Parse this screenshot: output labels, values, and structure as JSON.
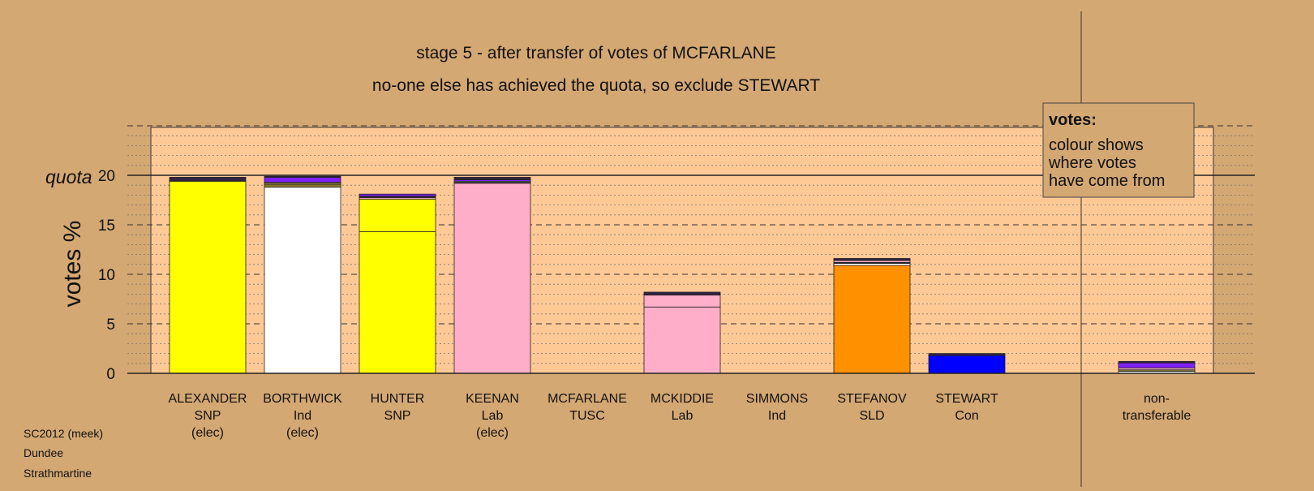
{
  "titles": {
    "line1": "stage 5 - after transfer of votes of MCFARLANE",
    "line2": "no-one else has achieved the quota, so exclude STEWART"
  },
  "footer": [
    "SC2012 (meek)",
    "Dundee",
    "Strathmartine"
  ],
  "legend": {
    "heading": "votes:",
    "lines": [
      "colour shows",
      "where votes",
      "have come from"
    ]
  },
  "colors": {
    "background": "#d4a873",
    "plot_fill": "#ffc996",
    "SNP": "#ffff00",
    "Ind": "#ffffff",
    "Lab": "#ffaec9",
    "SLD": "#ff9000",
    "Con": "#0000ff",
    "TUSC": "#8020ff",
    "dark": "#332244",
    "olive": "#8a7a30"
  },
  "chart_data": {
    "type": "bar",
    "ylabel": "votes %",
    "ylim": [
      0,
      25
    ],
    "yticks": [
      0,
      5,
      10,
      15,
      20
    ],
    "quota": 20,
    "quota_label": "quota",
    "grid": "dashed major, dotted minor",
    "candidates": [
      {
        "name": "ALEXANDER",
        "party": "SNP",
        "status": "(elec)",
        "total": 19.8,
        "segments": [
          {
            "from": "SNP",
            "value": 19.4
          },
          {
            "from": "dark",
            "value": 0.4
          }
        ]
      },
      {
        "name": "BORTHWICK",
        "party": "Ind",
        "status": "(elec)",
        "total": 19.9,
        "segments": [
          {
            "from": "Ind",
            "value": 18.8
          },
          {
            "from": "olive",
            "value": 0.3
          },
          {
            "from": "SNP",
            "value": 0.1
          },
          {
            "from": "Lab",
            "value": 0.1
          },
          {
            "from": "TUSC",
            "value": 0.5
          },
          {
            "from": "dark",
            "value": 0.1
          }
        ]
      },
      {
        "name": "HUNTER",
        "party": "SNP",
        "status": "",
        "total": 18.1,
        "segments": [
          {
            "from": "SNP",
            "value": 14.3
          },
          {
            "from": "SNP",
            "value": 3.3
          },
          {
            "from": "Lab",
            "value": 0.15
          },
          {
            "from": "dark",
            "value": 0.15
          },
          {
            "from": "TUSC",
            "value": 0.2
          }
        ]
      },
      {
        "name": "KEENAN",
        "party": "Lab",
        "status": "(elec)",
        "total": 19.8,
        "segments": [
          {
            "from": "Lab",
            "value": 19.2
          },
          {
            "from": "dark",
            "value": 0.1
          },
          {
            "from": "Ind",
            "value": 0.1
          },
          {
            "from": "TUSC",
            "value": 0.15
          },
          {
            "from": "dark",
            "value": 0.25
          }
        ]
      },
      {
        "name": "MCFARLANE",
        "party": "TUSC",
        "status": "",
        "total": 0,
        "segments": []
      },
      {
        "name": "MCKIDDIE",
        "party": "Lab",
        "status": "",
        "total": 8.2,
        "segments": [
          {
            "from": "Lab",
            "value": 6.7
          },
          {
            "from": "Lab",
            "value": 1.2
          },
          {
            "from": "dark",
            "value": 0.3
          }
        ]
      },
      {
        "name": "SIMMONS",
        "party": "Ind",
        "status": "",
        "total": 0,
        "segments": []
      },
      {
        "name": "STEFANOV",
        "party": "SLD",
        "status": "",
        "total": 11.6,
        "segments": [
          {
            "from": "SLD",
            "value": 10.9
          },
          {
            "from": "Ind",
            "value": 0.2
          },
          {
            "from": "dark",
            "value": 0.1
          },
          {
            "from": "Lab",
            "value": 0.2
          },
          {
            "from": "dark",
            "value": 0.2
          }
        ]
      },
      {
        "name": "STEWART",
        "party": "Con",
        "status": "",
        "total": 2.0,
        "segments": [
          {
            "from": "Con",
            "value": 1.8
          },
          {
            "from": "dark",
            "value": 0.2
          }
        ]
      }
    ],
    "nontransferable": {
      "label1": "non-",
      "label2": "transferable",
      "total": 1.2,
      "segments": [
        {
          "from": "Ind",
          "value": 0.2
        },
        {
          "from": "olive",
          "value": 0.15
        },
        {
          "from": "Lab",
          "value": 0.2
        },
        {
          "from": "TUSC",
          "value": 0.5
        },
        {
          "from": "dark",
          "value": 0.15
        }
      ]
    }
  }
}
